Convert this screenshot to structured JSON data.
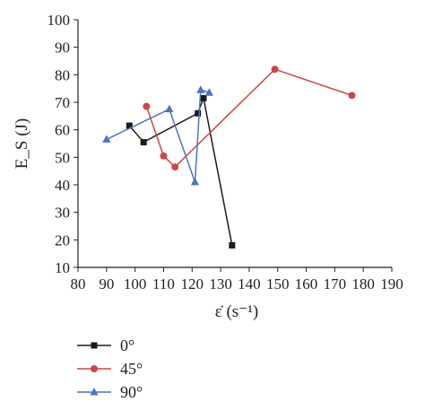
{
  "chart_data": {
    "type": "line",
    "xlabel": "ε̇ (s⁻¹)",
    "ylabel": "E_S (J)",
    "xlim": [
      80,
      190
    ],
    "ylim": [
      10,
      100
    ],
    "xticks": [
      80,
      90,
      100,
      110,
      120,
      130,
      140,
      150,
      160,
      170,
      180,
      190
    ],
    "yticks": [
      10,
      20,
      30,
      40,
      50,
      60,
      70,
      80,
      90,
      100
    ],
    "grid": false,
    "legend_position": "bottom-left",
    "series": [
      {
        "name": "0°",
        "color": "#1a1a1a",
        "marker": "square",
        "points": [
          [
            98,
            61.5
          ],
          [
            103,
            55.5
          ],
          [
            122,
            66
          ],
          [
            124,
            71.5
          ],
          [
            134,
            18
          ]
        ]
      },
      {
        "name": "45°",
        "color": "#d04545",
        "marker": "circle",
        "points": [
          [
            104,
            68.5
          ],
          [
            110,
            50.5
          ],
          [
            114,
            46.5
          ],
          [
            149,
            82
          ],
          [
            176,
            72.5
          ]
        ]
      },
      {
        "name": "90°",
        "color": "#4a74c4",
        "marker": "triangle",
        "points": [
          [
            90,
            56.5
          ],
          [
            112,
            67.5
          ],
          [
            121,
            41
          ],
          [
            123,
            74.5
          ],
          [
            126,
            73.5
          ]
        ]
      }
    ]
  }
}
